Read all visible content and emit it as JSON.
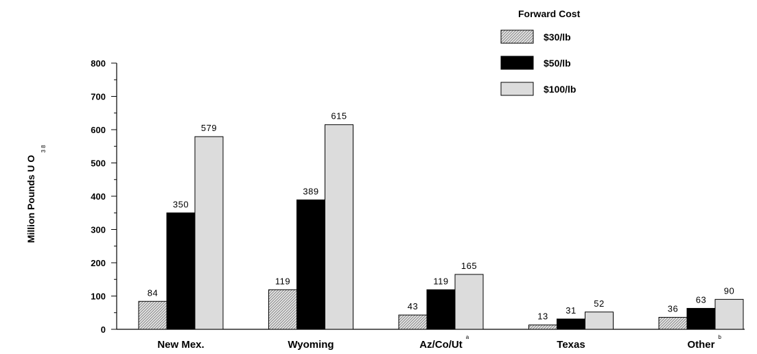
{
  "chart_data": {
    "type": "bar",
    "categories": [
      "New Mex.",
      "Wyoming",
      "Az/Co/Ut",
      "Texas",
      "Other"
    ],
    "category_superscripts": [
      "",
      "",
      "a",
      "",
      "b"
    ],
    "series": [
      {
        "name": "$30/lb",
        "values": [
          84,
          119,
          43,
          13,
          36
        ],
        "color": "#d8d8d8",
        "pattern": "hatch"
      },
      {
        "name": "$50/lb",
        "values": [
          350,
          389,
          119,
          31,
          63
        ],
        "color": "#000000",
        "pattern": "solid"
      },
      {
        "name": "$100/lb",
        "values": [
          579,
          615,
          165,
          52,
          90
        ],
        "color": "#dcdcdc",
        "pattern": "solid"
      }
    ],
    "title": "",
    "xlabel": "",
    "ylabel": "Million Pounds U O",
    "ylabel_subscripts": "3 8",
    "ylim": [
      0,
      800
    ],
    "yticks": [
      0,
      100,
      200,
      300,
      400,
      500,
      600,
      700,
      800
    ],
    "legend_title": "Forward Cost",
    "legend_position": "top-right",
    "grid": false
  }
}
